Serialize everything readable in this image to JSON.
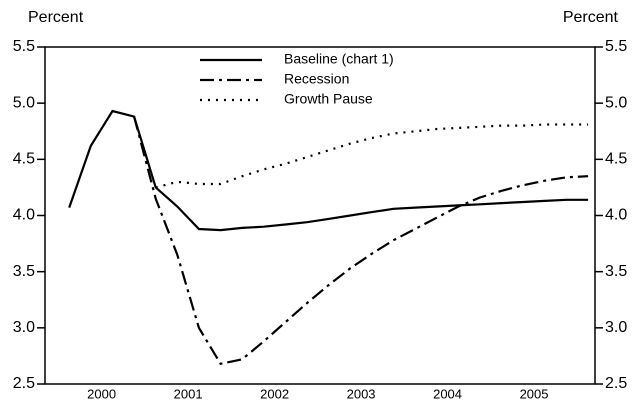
{
  "chart_data": {
    "type": "line",
    "ylabel": "Percent",
    "y2label": "Percent",
    "x": [
      2000,
      2000.25,
      2000.5,
      2000.75,
      2001,
      2001.25,
      2001.5,
      2001.75,
      2002,
      2002.25,
      2002.5,
      2002.75,
      2003,
      2003.25,
      2003.5,
      2003.75,
      2004,
      2004.25,
      2004.5,
      2004.75,
      2005,
      2005.25,
      2005.5,
      2005.75,
      2006
    ],
    "xlim": [
      1999.72,
      2006.08
    ],
    "xticks": [
      {
        "value": 2000.375,
        "label": "2000"
      },
      {
        "value": 2001.375,
        "label": "2001"
      },
      {
        "value": 2002.375,
        "label": "2002"
      },
      {
        "value": 2003.375,
        "label": "2003"
      },
      {
        "value": 2004.375,
        "label": "2004"
      },
      {
        "value": 2005.375,
        "label": "2005"
      }
    ],
    "ylim": [
      2.5,
      5.5
    ],
    "yticks": [
      2.5,
      {
        "value": 3,
        "label": "3.0"
      },
      3.5,
      {
        "value": 4,
        "label": "4.0"
      },
      4.5,
      {
        "value": 5,
        "label": "5.0"
      },
      5.5
    ],
    "y2lim": [
      2.5,
      5.5
    ],
    "y2ticks": [
      2.5,
      {
        "value": 3,
        "label": "3.0"
      },
      3.5,
      {
        "value": 4,
        "label": "4.0"
      },
      4.5,
      {
        "value": 5,
        "label": "5.0"
      },
      5.5
    ],
    "series": [
      {
        "name": "Baseline (chart 1)",
        "color": "#000000",
        "dash": "solid",
        "values": [
          4.07,
          4.62,
          4.93,
          4.88,
          4.25,
          4.08,
          3.88,
          3.87,
          3.89,
          3.9,
          3.92,
          3.94,
          3.97,
          4.0,
          4.03,
          4.06,
          4.07,
          4.08,
          4.09,
          4.1,
          4.11,
          4.12,
          4.13,
          4.14,
          4.14
        ]
      },
      {
        "name": "Recession",
        "color": "#000000",
        "dash": "dashdot",
        "values": [
          null,
          null,
          null,
          4.88,
          4.15,
          3.65,
          3.0,
          2.68,
          2.72,
          2.88,
          3.05,
          3.22,
          3.38,
          3.53,
          3.66,
          3.78,
          3.88,
          3.98,
          4.08,
          4.16,
          4.22,
          4.27,
          4.31,
          4.34,
          4.35
        ]
      },
      {
        "name": "Growth Pause",
        "color": "#000000",
        "dash": "dotted",
        "values": [
          null,
          null,
          null,
          null,
          4.25,
          4.3,
          4.28,
          4.28,
          4.35,
          4.41,
          4.46,
          4.52,
          4.58,
          4.64,
          4.69,
          4.73,
          4.75,
          4.77,
          4.78,
          4.79,
          4.8,
          4.8,
          4.81,
          4.81,
          4.81
        ]
      }
    ]
  }
}
